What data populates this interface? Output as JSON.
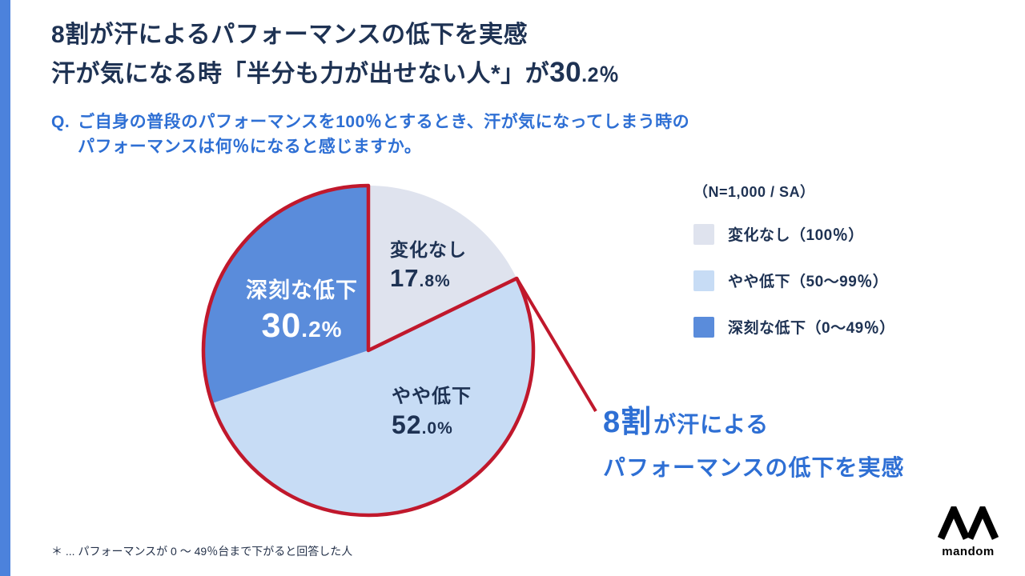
{
  "page": {
    "title_line1": "8割が汗によるパフォーマンスの低下を実感",
    "title_line2_pre": "汗が気になる時「半分も力が出せない人*」が",
    "title_line2_num": "30",
    "title_line2_suffix": ".2％",
    "question_prefix": "Q.",
    "question_line1": "ご自身の普段のパフォーマンスを100％とするとき、汗が気になってしまう時の",
    "question_line2": "パフォーマンスは何％になると感じますか。",
    "sample_note": "（N=1,000 / SA）",
    "footnote": "＊ ... パフォーマンスが 0 〜 49％台まで下がると回答した人"
  },
  "chart_data": {
    "type": "pie",
    "title": "",
    "start_angle_deg": -90,
    "clockwise": true,
    "legend_position": "right",
    "slices": [
      {
        "label": "変化なし",
        "value": 17.8,
        "pct_int": "17",
        "pct_frac": ".8%",
        "color": "#dfe3ee",
        "legend_label": "変化なし（100％）"
      },
      {
        "label": "やや低下",
        "value": 52.0,
        "pct_int": "52",
        "pct_frac": ".0%",
        "color": "#c7dcf5",
        "legend_label": "やや低下（50〜99％）"
      },
      {
        "label": "深刻な低下",
        "value": 30.2,
        "pct_int": "30",
        "pct_frac": ".2%",
        "color": "#5a8cdb",
        "legend_label": "深刻な低下（0〜49％）"
      }
    ],
    "highlight_outline": {
      "from_index": 1,
      "covers": [
        "やや低下",
        "深刻な低下"
      ],
      "total_pct": 82.2,
      "color": "#c0182c"
    }
  },
  "callout": {
    "big": "8割",
    "line1_rest": "が汗による",
    "line2": "パフォーマンスの低下を実感"
  },
  "brand": {
    "logo_text": "mandom"
  },
  "colors": {
    "accent_blue": "#4c82dc",
    "navy_text": "#1e3253",
    "blue_text": "#2e6fd4",
    "highlight_red": "#c0182c"
  }
}
